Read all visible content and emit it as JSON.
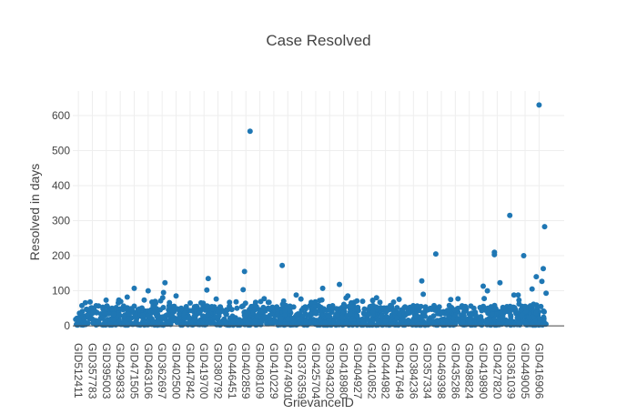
{
  "chart_data": {
    "type": "scatter",
    "title": "Case Resolved",
    "xlabel": "GrievanceID",
    "ylabel": "Resolved in days",
    "ylim": [
      -5,
      670
    ],
    "y_ticks": [
      0,
      100,
      200,
      300,
      400,
      500,
      600
    ],
    "x_tick_labels": [
      "GID512411",
      "GID357783",
      "GID395003",
      "GID429833",
      "GID471505",
      "GID463106",
      "GID362697",
      "GID402500",
      "GID447842",
      "GID419700",
      "GID380792",
      "GID446451",
      "GID402859",
      "GID408109",
      "GID410229",
      "GID474901",
      "GID376359",
      "GID425704",
      "GID394320",
      "GID418980",
      "GID404927",
      "GID410852",
      "GID444982",
      "GID417649",
      "GID384236",
      "GID357334",
      "GID469398",
      "GID435286",
      "GID498824",
      "GID419890",
      "GID427820",
      "GID361039",
      "GID449005",
      "GID416906"
    ],
    "x_tick_positions": [
      0,
      1,
      2,
      3,
      4,
      5,
      6,
      7,
      8,
      9,
      10,
      11,
      12,
      13,
      14,
      15,
      16,
      17,
      18,
      19,
      20,
      21,
      22,
      23,
      24,
      25,
      26,
      27,
      28,
      29,
      30,
      31,
      32,
      33
    ],
    "xlim": [
      -0.4,
      34.8
    ],
    "marker_color": "#1f77b4",
    "grid": true,
    "outlier_points": [
      {
        "x": 12.3,
        "y": 555
      },
      {
        "x": 11.9,
        "y": 155
      },
      {
        "x": 11.8,
        "y": 103
      },
      {
        "x": 14.6,
        "y": 172
      },
      {
        "x": 9.3,
        "y": 135
      },
      {
        "x": 9.2,
        "y": 102
      },
      {
        "x": 6.2,
        "y": 123
      },
      {
        "x": 6.1,
        "y": 95
      },
      {
        "x": 4.0,
        "y": 107
      },
      {
        "x": 3.5,
        "y": 82
      },
      {
        "x": 5.0,
        "y": 100
      },
      {
        "x": 7.0,
        "y": 85
      },
      {
        "x": 18.7,
        "y": 118
      },
      {
        "x": 17.5,
        "y": 107
      },
      {
        "x": 19.3,
        "y": 85
      },
      {
        "x": 15.6,
        "y": 88
      },
      {
        "x": 24.6,
        "y": 128
      },
      {
        "x": 24.7,
        "y": 90
      },
      {
        "x": 25.6,
        "y": 205
      },
      {
        "x": 29.8,
        "y": 210
      },
      {
        "x": 29.8,
        "y": 203
      },
      {
        "x": 30.2,
        "y": 123
      },
      {
        "x": 30.9,
        "y": 315
      },
      {
        "x": 31.5,
        "y": 88
      },
      {
        "x": 31.2,
        "y": 88
      },
      {
        "x": 31.9,
        "y": 200
      },
      {
        "x": 29.0,
        "y": 113
      },
      {
        "x": 29.3,
        "y": 100
      },
      {
        "x": 33.0,
        "y": 630
      },
      {
        "x": 32.8,
        "y": 140
      },
      {
        "x": 33.4,
        "y": 283
      },
      {
        "x": 33.3,
        "y": 163
      },
      {
        "x": 33.2,
        "y": 127
      },
      {
        "x": 33.5,
        "y": 93
      },
      {
        "x": 32.5,
        "y": 105
      }
    ],
    "bulk_band": {
      "n_points": 1400,
      "x_range": [
        -0.2,
        33.5
      ],
      "y_range": [
        2,
        58
      ]
    }
  }
}
